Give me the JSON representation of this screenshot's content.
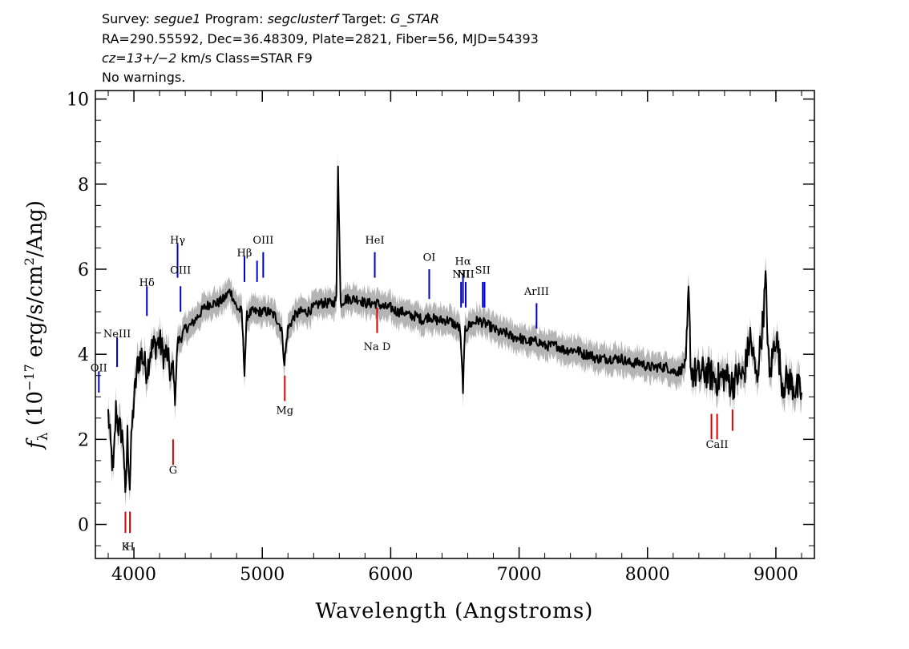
{
  "header": {
    "survey_label": "Survey:",
    "survey": "segue1",
    "program_label": "Program:",
    "program": "segclusterf",
    "target_label": "Target:",
    "target": "G_STAR",
    "line2": "RA=290.55592, Dec=36.48309, Plate=2821, Fiber=56, MJD=54393",
    "cz": "cz=13+/−2",
    "cz_rest": " km/s Class=STAR F9",
    "line4": "No warnings."
  },
  "chart_data": {
    "type": "line",
    "title": "",
    "xlabel": "Wavelength (Angstroms)",
    "ylabel": "fλ (10⁻¹⁷ erg/s/cm²/Ang)",
    "xlim": [
      3700,
      9300
    ],
    "ylim": [
      -0.8,
      10.2
    ],
    "x_ticks": [
      4000,
      5000,
      6000,
      7000,
      8000,
      9000
    ],
    "y_ticks": [
      0,
      2,
      4,
      6,
      8,
      10
    ],
    "grid": false,
    "legend": "none",
    "series": [
      {
        "role": "flux",
        "color": "#000000",
        "x": [
          3800,
          3820,
          3840,
          3860,
          3880,
          3900,
          3920,
          3933,
          3950,
          3968,
          3985,
          4000,
          4030,
          4060,
          4101,
          4130,
          4160,
          4200,
          4230,
          4260,
          4290,
          4305,
          4320,
          4340,
          4370,
          4400,
          4450,
          4500,
          4550,
          4600,
          4650,
          4700,
          4750,
          4800,
          4840,
          4861,
          4880,
          4920,
          4960,
          5000,
          5050,
          5100,
          5150,
          5172,
          5200,
          5250,
          5300,
          5350,
          5400,
          5450,
          5500,
          5550,
          5577,
          5590,
          5610,
          5650,
          5700,
          5750,
          5800,
          5850,
          5893,
          5950,
          6000,
          6050,
          6100,
          6150,
          6200,
          6250,
          6300,
          6350,
          6400,
          6450,
          6500,
          6540,
          6563,
          6580,
          6620,
          6680,
          6750,
          6800,
          6850,
          6900,
          6950,
          7000,
          7050,
          7100,
          7150,
          7200,
          7250,
          7300,
          7350,
          7400,
          7450,
          7500,
          7550,
          7600,
          7650,
          7700,
          7750,
          7800,
          7850,
          7900,
          7950,
          8000,
          8050,
          8100,
          8150,
          8200,
          8250,
          8300,
          8320,
          8340,
          8400,
          8450,
          8498,
          8542,
          8600,
          8662,
          8700,
          8750,
          8800,
          8850,
          8900,
          8920,
          8950,
          9000,
          9050,
          9100,
          9150,
          9200
        ],
        "y": [
          2.6,
          1.8,
          1.2,
          2.7,
          2.3,
          2.2,
          1.9,
          0.5,
          2.1,
          0.9,
          2.3,
          2.9,
          3.8,
          4.0,
          3.6,
          4.1,
          4.2,
          4.3,
          4.0,
          4.0,
          3.4,
          3.8,
          2.9,
          4.3,
          4.4,
          4.6,
          4.7,
          4.9,
          5.1,
          5.2,
          5.2,
          5.3,
          5.5,
          5.1,
          5.0,
          3.6,
          4.9,
          5.0,
          5.0,
          5.0,
          5.0,
          4.9,
          4.6,
          3.8,
          4.6,
          4.9,
          5.0,
          5.0,
          5.1,
          5.2,
          5.2,
          5.2,
          5.3,
          8.5,
          5.2,
          5.3,
          5.3,
          5.3,
          5.2,
          5.2,
          5.2,
          5.1,
          5.1,
          5.0,
          5.0,
          4.9,
          4.9,
          4.8,
          4.9,
          4.8,
          4.8,
          4.8,
          4.7,
          4.6,
          3.2,
          4.6,
          4.7,
          4.8,
          4.7,
          4.6,
          4.5,
          4.5,
          4.4,
          4.4,
          4.3,
          4.3,
          4.3,
          4.2,
          4.2,
          4.2,
          4.1,
          4.1,
          4.1,
          4.0,
          4.0,
          3.9,
          3.9,
          3.9,
          3.9,
          3.9,
          3.8,
          3.8,
          3.8,
          3.7,
          3.7,
          3.7,
          3.7,
          3.6,
          3.6,
          3.8,
          5.4,
          3.6,
          3.5,
          3.6,
          3.5,
          3.4,
          3.5,
          3.3,
          3.5,
          3.5,
          4.4,
          3.4,
          4.8,
          5.7,
          3.4,
          4.5,
          3.3,
          3.4,
          3.2,
          3.1
        ]
      }
    ],
    "emission_lines": [
      {
        "label": "OII",
        "x": 3727,
        "y1": 3.1,
        "y2": 3.6,
        "label_y": 3.6
      },
      {
        "label": "NeIII",
        "x": 3869,
        "y1": 3.7,
        "y2": 4.4,
        "label_y": 4.4
      },
      {
        "label": "Hδ",
        "x": 4101,
        "y1": 4.9,
        "y2": 5.6,
        "label_y": 5.6
      },
      {
        "label": "Hγ",
        "x": 4340,
        "y1": 5.8,
        "y2": 6.6,
        "label_y": 6.6
      },
      {
        "label": "OIII",
        "x": 4363,
        "y1": 5.0,
        "y2": 5.6,
        "label_y": 5.9
      },
      {
        "label": "Hβ",
        "x": 4861,
        "y1": 5.7,
        "y2": 6.3,
        "label_y": 6.3
      },
      {
        "label": "",
        "x": 4959,
        "y1": 5.7,
        "y2": 6.2,
        "label_y": 6.2
      },
      {
        "label": "OIII",
        "x": 5007,
        "y1": 5.8,
        "y2": 6.4,
        "label_y": 6.6
      },
      {
        "label": "HeI",
        "x": 5876,
        "y1": 5.8,
        "y2": 6.4,
        "label_y": 6.6
      },
      {
        "label": "OI",
        "x": 6300,
        "y1": 5.3,
        "y2": 6.0,
        "label_y": 6.2
      },
      {
        "label": "NII",
        "x": 6548,
        "y1": 5.1,
        "y2": 5.7,
        "label_y": 5.8
      },
      {
        "label": "Hα",
        "x": 6563,
        "y1": 5.2,
        "y2": 5.9,
        "label_y": 6.1
      },
      {
        "label": "NII",
        "x": 6584,
        "y1": 5.1,
        "y2": 5.7,
        "label_y": 5.8
      },
      {
        "label": "SII",
        "x": 6717,
        "y1": 5.1,
        "y2": 5.7,
        "label_y": 5.9
      },
      {
        "label": "",
        "x": 6731,
        "y1": 5.1,
        "y2": 5.7,
        "label_y": 5.9
      },
      {
        "label": "ArIII",
        "x": 7136,
        "y1": 4.6,
        "y2": 5.2,
        "label_y": 5.4
      }
    ],
    "absorption_lines": [
      {
        "label": "K",
        "x": 3934,
        "y1": -0.2,
        "y2": 0.3,
        "label_y": -0.6
      },
      {
        "label": "H",
        "x": 3969,
        "y1": -0.2,
        "y2": 0.3,
        "label_y": -0.6
      },
      {
        "label": "G",
        "x": 4305,
        "y1": 1.4,
        "y2": 2.0,
        "label_y": 1.2
      },
      {
        "label": "Mg",
        "x": 5175,
        "y1": 2.9,
        "y2": 3.5,
        "label_y": 2.6
      },
      {
        "label": "Na D",
        "x": 5894,
        "y1": 4.5,
        "y2": 5.1,
        "label_y": 4.1
      },
      {
        "label": "",
        "x": 8498,
        "y1": 2.0,
        "y2": 2.6,
        "label_y": 1.8
      },
      {
        "label": "CaII",
        "x": 8542,
        "y1": 2.0,
        "y2": 2.6,
        "label_y": 1.8
      },
      {
        "label": "",
        "x": 8662,
        "y1": 2.2,
        "y2": 2.7,
        "label_y": 1.8
      }
    ],
    "colors": {
      "flux": "#000000",
      "error": "#b4b4b4",
      "emission": "#0000cc",
      "absorption": "#dd0000"
    }
  }
}
